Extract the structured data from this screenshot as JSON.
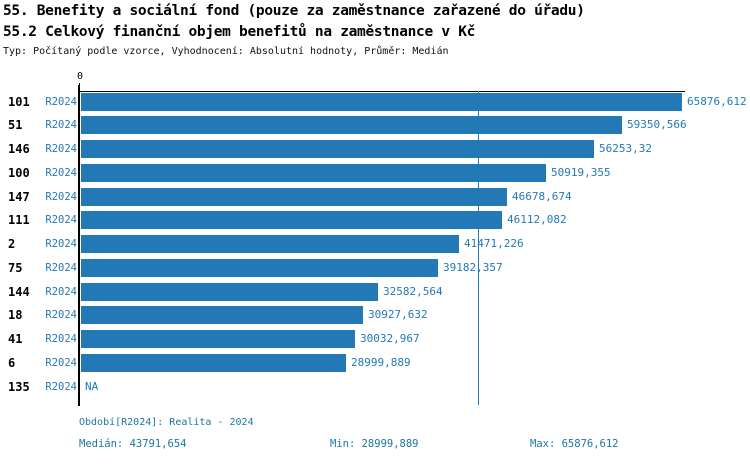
{
  "title": {
    "line1": "55. Benefity a sociální fond (pouze za zaměstnance zařazené do úřadu)",
    "line2": "55.2 Celkový finanční objem benefitů na zaměstnance v Kč",
    "subtitle": "Typ: Počítaný podle vzorce, Vyhodnocení: Absolutní hodnoty, Průměr: Medián"
  },
  "colors": {
    "bar": "#2379b5",
    "blue_text": "#2379b5",
    "footer_text": "#1b789d",
    "axis": "#000000"
  },
  "chart_data": {
    "type": "bar",
    "orientation": "horizontal",
    "title": "55.2 Celkový finanční objem benefitů na zaměstnance v Kč",
    "xlabel": "",
    "ylabel": "",
    "xlim": [
      0,
      65876.612
    ],
    "axis": {
      "zero_label": "0"
    },
    "median": {
      "value": 43791.654
    },
    "categories": [
      "101",
      "51",
      "146",
      "100",
      "147",
      "111",
      "2",
      "75",
      "144",
      "18",
      "41",
      "6",
      "135"
    ],
    "rows": [
      {
        "id": "101",
        "period": "R2024",
        "value": 65876.612,
        "label": "65876,612"
      },
      {
        "id": "51",
        "period": "R2024",
        "value": 59350.566,
        "label": "59350,566"
      },
      {
        "id": "146",
        "period": "R2024",
        "value": 56253.32,
        "label": "56253,32"
      },
      {
        "id": "100",
        "period": "R2024",
        "value": 50919.355,
        "label": "50919,355"
      },
      {
        "id": "147",
        "period": "R2024",
        "value": 46678.674,
        "label": "46678,674"
      },
      {
        "id": "111",
        "period": "R2024",
        "value": 46112.082,
        "label": "46112,082"
      },
      {
        "id": "2",
        "period": "R2024",
        "value": 41471.226,
        "label": "41471,226"
      },
      {
        "id": "75",
        "period": "R2024",
        "value": 39182.357,
        "label": "39182,357"
      },
      {
        "id": "144",
        "period": "R2024",
        "value": 32582.564,
        "label": "32582,564"
      },
      {
        "id": "18",
        "period": "R2024",
        "value": 30927.632,
        "label": "30927,632"
      },
      {
        "id": "41",
        "period": "R2024",
        "value": 30032.967,
        "label": "30032,967"
      },
      {
        "id": "6",
        "period": "R2024",
        "value": 28999.889,
        "label": "28999,889"
      },
      {
        "id": "135",
        "period": "R2024",
        "value": null,
        "label": "NA"
      }
    ]
  },
  "footer": {
    "period_info": "Období[R2024]: Realita - 2024",
    "median": "Medián: 43791,654",
    "min": "Min: 28999,889",
    "max": "Max: 65876,612"
  }
}
